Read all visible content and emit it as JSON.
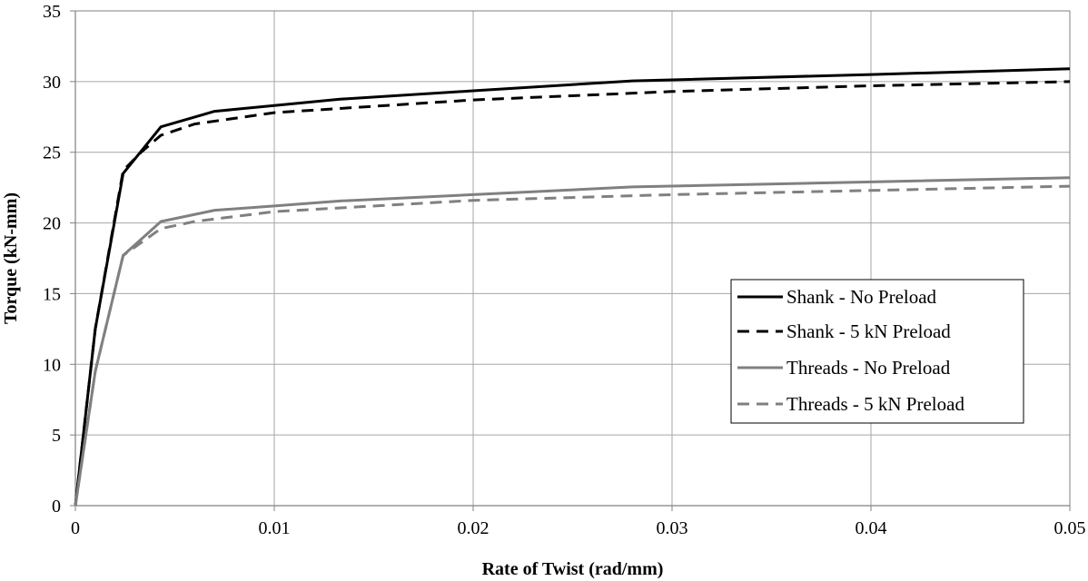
{
  "chart_data": {
    "type": "line",
    "xlabel": "Rate of Twist (rad/mm)",
    "ylabel": "Torque (kN-mm)",
    "xlim": [
      0,
      0.05
    ],
    "ylim": [
      0,
      35
    ],
    "x_ticks": [
      0,
      0.01,
      0.02,
      0.03,
      0.04,
      0.05
    ],
    "x_tick_labels": [
      "0",
      "0.01",
      "0.02",
      "0.03",
      "0.04",
      "0.05"
    ],
    "y_ticks": [
      0,
      5,
      10,
      15,
      20,
      25,
      30,
      35
    ],
    "y_tick_labels": [
      "0",
      "5",
      "10",
      "15",
      "20",
      "25",
      "30",
      "35"
    ],
    "grid": true,
    "legend_position": "right-middle",
    "series": [
      {
        "name": "Shank - No Preload",
        "color": "#000000",
        "dash": "solid",
        "x": [
          0,
          0.001,
          0.0024,
          0.0043,
          0.007,
          0.01,
          0.0133,
          0.02,
          0.028,
          0.04,
          0.05
        ],
        "y": [
          0,
          12.5,
          23.5,
          26.8,
          27.9,
          28.3,
          28.75,
          29.35,
          30.05,
          30.5,
          30.9
        ]
      },
      {
        "name": "Shank - 5 kN Preload",
        "color": "#000000",
        "dash": "dashed",
        "x": [
          0,
          0.001,
          0.0024,
          0.0033,
          0.0043,
          0.006,
          0.01,
          0.02,
          0.03,
          0.04,
          0.05
        ],
        "y": [
          0,
          12.5,
          23.7,
          25.0,
          26.2,
          27.0,
          27.8,
          28.7,
          29.3,
          29.7,
          30.0
        ]
      },
      {
        "name": "Threads - No Preload",
        "color": "#808080",
        "dash": "solid",
        "x": [
          0,
          0.001,
          0.0024,
          0.0043,
          0.007,
          0.01,
          0.0133,
          0.02,
          0.028,
          0.04,
          0.05
        ],
        "y": [
          0,
          9.5,
          17.7,
          20.1,
          20.9,
          21.2,
          21.55,
          22.0,
          22.55,
          22.9,
          23.2
        ]
      },
      {
        "name": "Threads - 5 kN Preload",
        "color": "#808080",
        "dash": "dashed",
        "x": [
          0,
          0.001,
          0.0024,
          0.0033,
          0.0043,
          0.006,
          0.01,
          0.02,
          0.03,
          0.04,
          0.05
        ],
        "y": [
          0,
          9.5,
          17.7,
          18.6,
          19.6,
          20.1,
          20.8,
          21.6,
          22.0,
          22.3,
          22.6
        ]
      }
    ]
  }
}
